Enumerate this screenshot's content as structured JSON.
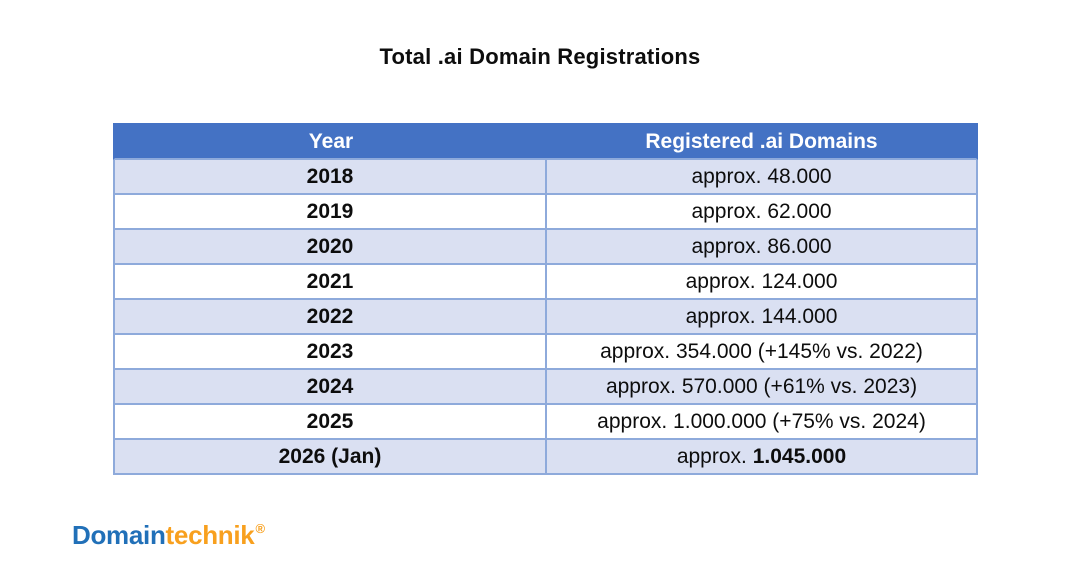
{
  "page": {
    "title": "Total .ai Domain Registrations"
  },
  "table": {
    "columns": {
      "year": "Year",
      "domains": "Registered .ai Domains"
    },
    "rows": [
      {
        "year": "2018",
        "value": "approx. 48.000"
      },
      {
        "year": "2019",
        "value": "approx. 62.000"
      },
      {
        "year": "2020",
        "value": "approx. 86.000"
      },
      {
        "year": "2021",
        "value": "approx. 124.000"
      },
      {
        "year": "2022",
        "value": "approx. 144.000"
      },
      {
        "year": "2023",
        "value": "approx. 354.000 (+145% vs. 2022)"
      },
      {
        "year": "2024",
        "value": "approx. 570.000 (+61% vs. 2023)"
      },
      {
        "year": "2025",
        "value": "approx. 1.000.000 (+75% vs. 2024)"
      },
      {
        "year": "2026 (Jan)",
        "value_prefix": "approx. ",
        "value_strong": "1.045.000"
      }
    ]
  },
  "logo": {
    "part1": "Domain",
    "part2": "technik",
    "registered_mark": "®"
  },
  "colors": {
    "header_bg": "#4472c4",
    "header_text": "#ffffff",
    "band_row_bg": "#dae0f2",
    "plain_row_bg": "#ffffff",
    "border": "#8eaadb",
    "title_text": "#0d0d0d",
    "logo_blue": "#2170b8",
    "logo_orange": "#f8a01e"
  },
  "chart_data": {
    "type": "table",
    "title": "Total .ai Domain Registrations",
    "columns": [
      "Year",
      "Registered .ai Domains"
    ],
    "categories": [
      "2018",
      "2019",
      "2020",
      "2021",
      "2022",
      "2023",
      "2024",
      "2025",
      "2026 (Jan)"
    ],
    "values": [
      48000,
      62000,
      86000,
      124000,
      144000,
      354000,
      570000,
      1000000,
      1045000
    ],
    "value_labels": [
      "approx. 48.000",
      "approx. 62.000",
      "approx. 86.000",
      "approx. 124.000",
      "approx. 144.000",
      "approx. 354.000 (+145% vs. 2022)",
      "approx. 570.000 (+61% vs. 2023)",
      "approx. 1.000.000 (+75% vs. 2024)",
      "approx. 1.045.000"
    ],
    "yoy_change_pct": {
      "2023": 145,
      "2024": 61,
      "2025": 75
    },
    "layout": {
      "banded_rows": true,
      "header_position": "top"
    }
  }
}
